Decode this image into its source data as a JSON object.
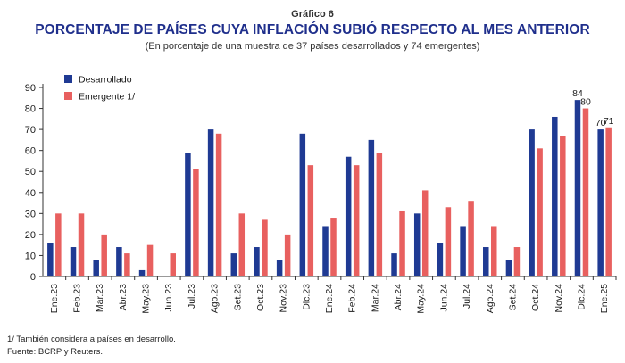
{
  "header": {
    "kicker": "Gráfico 6",
    "title": "PORCENTAJE DE PAÍSES CUYA INFLACIÓN SUBIÓ RESPECTO AL MES ANTERIOR",
    "subtitle": "(En porcentaje de una muestra de 37 países desarrollados y 74 emergentes)"
  },
  "footnotes": {
    "note": "1/ También considera a países en desarrollo.",
    "source": "Fuente: BCRP y Reuters."
  },
  "chart_data": {
    "type": "bar",
    "categories": [
      "Ene.23",
      "Feb.23",
      "Mar.23",
      "Abr.23",
      "May.23",
      "Jun.23",
      "Jul.23",
      "Ago.23",
      "Set.23",
      "Oct.23",
      "Nov.23",
      "Dic.23",
      "Ene.24",
      "Feb.24",
      "Mar.24",
      "Abr.24",
      "May.24",
      "Jun.24",
      "Jul.24",
      "Ago.24",
      "Set.24",
      "Oct.24",
      "Nov.24",
      "Dic.24",
      "Ene.25"
    ],
    "series": [
      {
        "name": "Desarrollado",
        "color": "#1f3a93",
        "values": [
          16,
          14,
          8,
          14,
          3,
          0,
          59,
          70,
          11,
          14,
          8,
          68,
          24,
          57,
          65,
          11,
          30,
          16,
          24,
          14,
          8,
          70,
          76,
          84,
          70
        ]
      },
      {
        "name": "Emergente 1/",
        "color": "#e8605f",
        "values": [
          30,
          30,
          20,
          11,
          15,
          11,
          51,
          68,
          30,
          27,
          20,
          53,
          28,
          53,
          59,
          31,
          41,
          33,
          36,
          24,
          14,
          61,
          67,
          80,
          71
        ]
      }
    ],
    "data_labels": [
      {
        "category": "Dic.24",
        "series": 0,
        "text": "84"
      },
      {
        "category": "Dic.24",
        "series": 1,
        "text": "80"
      },
      {
        "category": "Ene.25",
        "series": 0,
        "text": "70"
      },
      {
        "category": "Ene.25",
        "series": 1,
        "text": "71"
      }
    ],
    "ylim": [
      0,
      90
    ],
    "yticks": [
      "0",
      "10",
      "20",
      "30",
      "40",
      "50",
      "60",
      "70",
      "80",
      "90"
    ],
    "legend": "top-left",
    "grid": false
  }
}
